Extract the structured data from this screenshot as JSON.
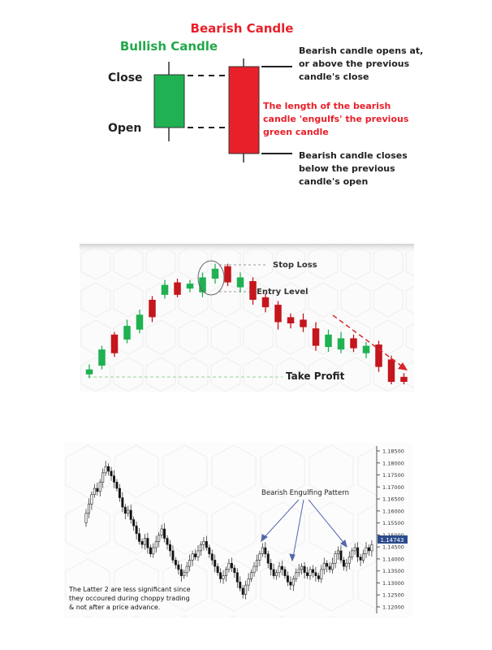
{
  "diagram1": {
    "bearish_title": "Bearish Candle",
    "bullish_title": "Bullish Candle",
    "label_close": "Close",
    "label_open": "Open",
    "annotation_top": [
      "Bearish candle opens at,",
      "or above the previous",
      "candle's close"
    ],
    "annotation_middle": [
      "The length of the bearish",
      "candle 'engulfs' the previous",
      "green candle"
    ],
    "annotation_bottom": [
      "Bearish candle closes",
      "below the previous",
      "candle's open"
    ],
    "colors": {
      "bullish": "#1fb152",
      "bearish": "#e8202a",
      "bearish_text": "#e8202a",
      "bullish_text": "#22a84a"
    }
  },
  "diagram2": {
    "stop_loss": "Stop Loss",
    "entry_level": "Entry Level",
    "take_profit": "Take Profit",
    "candles": [
      {
        "o": 0.08,
        "c": 0.12,
        "h": 0.16,
        "l": 0.05
      },
      {
        "o": 0.15,
        "c": 0.28,
        "h": 0.31,
        "l": 0.12
      },
      {
        "o": 0.4,
        "c": 0.25,
        "h": 0.42,
        "l": 0.22
      },
      {
        "o": 0.36,
        "c": 0.47,
        "h": 0.52,
        "l": 0.33
      },
      {
        "o": 0.44,
        "c": 0.56,
        "h": 0.6,
        "l": 0.41
      },
      {
        "o": 0.68,
        "c": 0.54,
        "h": 0.71,
        "l": 0.5
      },
      {
        "o": 0.72,
        "c": 0.8,
        "h": 0.84,
        "l": 0.69
      },
      {
        "o": 0.82,
        "c": 0.72,
        "h": 0.85,
        "l": 0.7
      },
      {
        "o": 0.77,
        "c": 0.81,
        "h": 0.84,
        "l": 0.74
      },
      {
        "o": 0.74,
        "c": 0.86,
        "h": 0.9,
        "l": 0.7
      },
      {
        "o": 0.85,
        "c": 0.93,
        "h": 0.97,
        "l": 0.81
      },
      {
        "o": 0.95,
        "c": 0.82,
        "h": 0.97,
        "l": 0.79
      },
      {
        "o": 0.78,
        "c": 0.86,
        "h": 0.9,
        "l": 0.74
      },
      {
        "o": 0.83,
        "c": 0.68,
        "h": 0.86,
        "l": 0.64
      },
      {
        "o": 0.7,
        "c": 0.62,
        "h": 0.73,
        "l": 0.58
      },
      {
        "o": 0.64,
        "c": 0.5,
        "h": 0.67,
        "l": 0.44
      },
      {
        "o": 0.54,
        "c": 0.49,
        "h": 0.57,
        "l": 0.45
      },
      {
        "o": 0.52,
        "c": 0.46,
        "h": 0.57,
        "l": 0.42
      },
      {
        "o": 0.45,
        "c": 0.31,
        "h": 0.5,
        "l": 0.27
      },
      {
        "o": 0.3,
        "c": 0.4,
        "h": 0.44,
        "l": 0.26
      },
      {
        "o": 0.28,
        "c": 0.37,
        "h": 0.42,
        "l": 0.25
      },
      {
        "o": 0.37,
        "c": 0.29,
        "h": 0.4,
        "l": 0.26
      },
      {
        "o": 0.25,
        "c": 0.31,
        "h": 0.34,
        "l": 0.21
      },
      {
        "o": 0.32,
        "c": 0.14,
        "h": 0.35,
        "l": 0.1
      },
      {
        "o": 0.2,
        "c": 0.02,
        "h": 0.23,
        "l": 0.0
      },
      {
        "o": 0.06,
        "c": 0.02,
        "h": 0.09,
        "l": 0.0
      }
    ],
    "colors": {
      "bullish": "#1fb152",
      "bearish": "#c4161c",
      "arrow": "#d9262b",
      "dash": "#9ad39a"
    }
  },
  "diagram3": {
    "pattern_label": "Bearish Engulfing Pattern",
    "note": [
      "The Latter 2 are less significant since",
      "they occoured during choppy trading",
      "& not after a price advance."
    ],
    "price_ticks": [
      "1.18500",
      "1.18000",
      "1.17500",
      "1.17000",
      "1.16500",
      "1.16000",
      "1.15500",
      "1.15000",
      "1.14500",
      "1.14000",
      "1.13500",
      "1.13000",
      "1.12500",
      "1.12000"
    ],
    "current_price": "1.14743",
    "colors": {
      "price_tag": "#2b4b8c",
      "arrow": "#5566aa"
    }
  }
}
